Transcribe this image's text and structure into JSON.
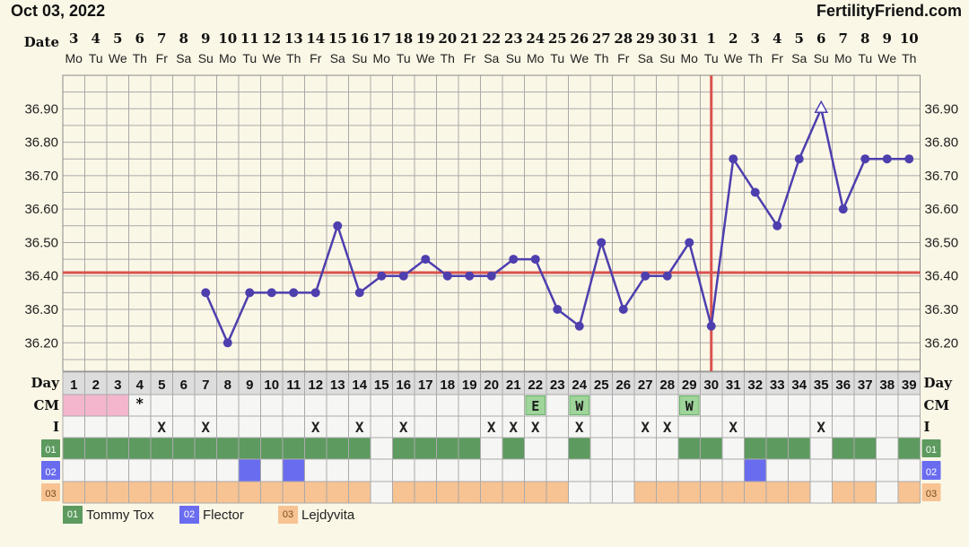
{
  "header": {
    "date": "Oct 03, 2022",
    "brand": "FertilityFriend.com"
  },
  "row_labels": {
    "date": "Date",
    "day": "Day",
    "cm": "CM",
    "intercourse": "I"
  },
  "colors": {
    "background": "#fbf7e6",
    "grid": "#a9a9a9",
    "line": "#4e3fae",
    "coverline": "#d9534f",
    "medication_01": "#5d9a5f",
    "medication_02": "#6a6cf0",
    "medication_03": "#f7c393",
    "period": "#f4b6cc",
    "cm_marker": "#9fd49a"
  },
  "chart_data": {
    "type": "line",
    "dates": [
      "3",
      "4",
      "5",
      "6",
      "7",
      "8",
      "9",
      "10",
      "11",
      "12",
      "13",
      "14",
      "15",
      "16",
      "17",
      "18",
      "19",
      "20",
      "21",
      "22",
      "23",
      "24",
      "25",
      "26",
      "27",
      "28",
      "29",
      "30",
      "31",
      "1",
      "2",
      "3",
      "4",
      "5",
      "6",
      "7",
      "8",
      "9",
      "10"
    ],
    "weekdays": [
      "Mo",
      "Tu",
      "We",
      "Th",
      "Fr",
      "Sa",
      "Su",
      "Mo",
      "Tu",
      "We",
      "Th",
      "Fr",
      "Sa",
      "Su",
      "Mo",
      "Tu",
      "We",
      "Th",
      "Fr",
      "Sa",
      "Su",
      "Mo",
      "Tu",
      "We",
      "Th",
      "Fr",
      "Sa",
      "Su",
      "Mo",
      "Tu",
      "We",
      "Th",
      "Fr",
      "Sa",
      "Su",
      "Mo",
      "Tu",
      "We",
      "Th"
    ],
    "cycle_days": [
      1,
      2,
      3,
      4,
      5,
      6,
      7,
      8,
      9,
      10,
      11,
      12,
      13,
      14,
      15,
      16,
      17,
      18,
      19,
      20,
      21,
      22,
      23,
      24,
      25,
      26,
      27,
      28,
      29,
      30,
      31,
      32,
      33,
      34,
      35,
      36,
      37,
      38,
      39
    ],
    "temperatures": [
      null,
      null,
      null,
      null,
      null,
      null,
      36.35,
      36.2,
      36.35,
      36.35,
      36.35,
      36.35,
      36.55,
      36.35,
      36.4,
      36.4,
      36.45,
      36.4,
      36.4,
      36.4,
      36.45,
      36.45,
      36.3,
      36.25,
      36.5,
      36.3,
      36.4,
      36.4,
      36.5,
      36.25,
      36.75,
      36.65,
      36.55,
      36.75,
      36.9,
      36.6,
      36.75,
      36.75,
      36.75
    ],
    "open_marker_days": [
      35
    ],
    "y_ticks": [
      "36.20",
      "36.30",
      "36.40",
      "36.50",
      "36.60",
      "36.70",
      "36.80",
      "36.90"
    ],
    "ylim": [
      36.115,
      37.0
    ],
    "coverline": 36.41,
    "ovulation_day": 30,
    "period_days": [
      1,
      2,
      3
    ],
    "spotting_days": [
      4
    ],
    "spotting_symbol": "*",
    "cm": [
      {
        "day": 22,
        "label": "E"
      },
      {
        "day": 24,
        "label": "W"
      },
      {
        "day": 29,
        "label": "W"
      }
    ],
    "intercourse_days": [
      5,
      7,
      12,
      14,
      16,
      20,
      21,
      22,
      24,
      27,
      28,
      31,
      35
    ],
    "intercourse_symbol": "X",
    "medications": [
      {
        "code": "01",
        "name": "Tommy Tox",
        "days": [
          1,
          2,
          3,
          4,
          5,
          6,
          7,
          8,
          9,
          10,
          11,
          12,
          13,
          14,
          16,
          17,
          18,
          19,
          21,
          24,
          29,
          30,
          32,
          33,
          34,
          36,
          37,
          39
        ]
      },
      {
        "code": "02",
        "name": "Flector",
        "days": [
          9,
          11,
          32
        ]
      },
      {
        "code": "03",
        "name": "Lejdyvita",
        "days": [
          1,
          2,
          3,
          4,
          5,
          6,
          7,
          8,
          9,
          10,
          11,
          12,
          13,
          14,
          16,
          17,
          18,
          19,
          20,
          21,
          22,
          23,
          27,
          28,
          29,
          30,
          31,
          32,
          33,
          34,
          36,
          37,
          39
        ]
      }
    ]
  }
}
